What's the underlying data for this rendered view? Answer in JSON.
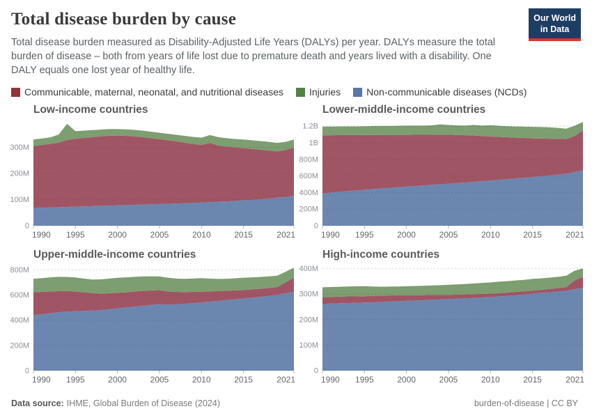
{
  "header": {
    "title": "Total disease burden by cause",
    "subtitle": "Total disease burden measured as Disability-Adjusted Life Years (DALYs) per year. DALYs measure the total burden of disease – both from years of life lost due to premature death and years lived with a disability. One DALY equals one lost year of healthy life.",
    "logo": {
      "line1": "Our World",
      "line2": "in Data",
      "bg": "#1d3d63",
      "accent": "#d8362e"
    }
  },
  "legend": {
    "items": [
      {
        "label": "Communicable, maternal, neonatal, and nutritional diseases",
        "color": "#97323d"
      },
      {
        "label": "Injuries",
        "color": "#538145"
      },
      {
        "label": "Non-communicable diseases (NCDs)",
        "color": "#5776a9"
      }
    ]
  },
  "chart_data": [
    {
      "type": "area",
      "stacked": true,
      "title": "Low-income countries",
      "x": [
        1990,
        1991,
        1992,
        1993,
        1994,
        1995,
        1996,
        1997,
        1998,
        1999,
        2000,
        2001,
        2002,
        2003,
        2004,
        2005,
        2006,
        2007,
        2008,
        2009,
        2010,
        2011,
        2012,
        2013,
        2014,
        2015,
        2016,
        2017,
        2018,
        2019,
        2020,
        2021
      ],
      "xticks": [
        1990,
        1995,
        2000,
        2005,
        2010,
        2015,
        2021
      ],
      "ylim": [
        0,
        400
      ],
      "yticks": [
        {
          "v": 0,
          "label": "0"
        },
        {
          "v": 100,
          "label": "100M"
        },
        {
          "v": 200,
          "label": "200M"
        },
        {
          "v": 300,
          "label": "300M"
        }
      ],
      "series": [
        {
          "name": "Non-communicable diseases (NCDs)",
          "color": "#6b87b0",
          "values": [
            68,
            69,
            70,
            71,
            72,
            73,
            74,
            75,
            76,
            77,
            78,
            79,
            80,
            81,
            82,
            83,
            84,
            85,
            86,
            87,
            89,
            90,
            92,
            93,
            95,
            97,
            99,
            101,
            104,
            107,
            110,
            114
          ]
        },
        {
          "name": "Communicable, maternal, neonatal, and nutritional diseases",
          "color": "#a05564",
          "values": [
            237,
            240,
            243,
            247,
            256,
            260,
            262,
            264,
            266,
            267,
            267,
            265,
            262,
            258,
            253,
            248,
            243,
            238,
            232,
            226,
            220,
            227,
            215,
            210,
            205,
            200,
            195,
            190,
            184,
            177,
            180,
            185
          ]
        },
        {
          "name": "Injuries",
          "color": "#7d9e70",
          "values": [
            25,
            25,
            25,
            31,
            62,
            29,
            28,
            27,
            26,
            26,
            25,
            25,
            25,
            25,
            25,
            25,
            25,
            25,
            26,
            27,
            28,
            30,
            32,
            32,
            32,
            33,
            33,
            33,
            33,
            33,
            31,
            31
          ]
        }
      ]
    },
    {
      "type": "area",
      "stacked": true,
      "title": "Lower-middle-income countries",
      "x": [
        1990,
        1991,
        1992,
        1993,
        1994,
        1995,
        1996,
        1997,
        1998,
        1999,
        2000,
        2001,
        2002,
        2003,
        2004,
        2005,
        2006,
        2007,
        2008,
        2009,
        2010,
        2011,
        2012,
        2013,
        2014,
        2015,
        2016,
        2017,
        2018,
        2019,
        2020,
        2021
      ],
      "xticks": [
        1990,
        1995,
        2000,
        2005,
        2010,
        2015,
        2021
      ],
      "ylim": [
        0,
        1260
      ],
      "yticks": [
        {
          "v": 0,
          "label": "0"
        },
        {
          "v": 200,
          "label": "200M"
        },
        {
          "v": 400,
          "label": "400M"
        },
        {
          "v": 600,
          "label": "600M"
        },
        {
          "v": 800,
          "label": "800M"
        },
        {
          "v": 1000,
          "label": "1B"
        },
        {
          "v": 1200,
          "label": "1.2B"
        }
      ],
      "series": [
        {
          "name": "Non-communicable diseases (NCDs)",
          "color": "#6b87b0",
          "values": [
            390,
            399,
            408,
            417,
            425,
            433,
            441,
            449,
            457,
            464,
            471,
            478,
            485,
            492,
            499,
            506,
            513,
            521,
            529,
            537,
            545,
            553,
            561,
            570,
            578,
            587,
            596,
            605,
            615,
            625,
            645,
            668
          ]
        },
        {
          "name": "Communicable, maternal, neonatal, and nutritional diseases",
          "color": "#a05564",
          "values": [
            700,
            692,
            684,
            676,
            668,
            660,
            653,
            645,
            638,
            631,
            624,
            618,
            611,
            605,
            598,
            591,
            581,
            570,
            559,
            545,
            530,
            518,
            506,
            492,
            480,
            466,
            455,
            444,
            432,
            420,
            435,
            482
          ]
        },
        {
          "name": "Injuries",
          "color": "#7d9e70",
          "values": [
            105,
            105,
            105,
            105,
            105,
            106,
            108,
            109,
            109,
            110,
            111,
            111,
            112,
            113,
            125,
            118,
            116,
            117,
            127,
            126,
            137,
            134,
            133,
            135,
            137,
            139,
            139,
            137,
            133,
            125,
            125,
            102
          ]
        }
      ]
    },
    {
      "type": "area",
      "stacked": true,
      "title": "Upper-middle-income countries",
      "x": [
        1990,
        1991,
        1992,
        1993,
        1994,
        1995,
        1996,
        1997,
        1998,
        1999,
        2000,
        2001,
        2002,
        2003,
        2004,
        2005,
        2006,
        2007,
        2008,
        2009,
        2010,
        2011,
        2012,
        2013,
        2014,
        2015,
        2016,
        2017,
        2018,
        2019,
        2020,
        2021
      ],
      "xticks": [
        1990,
        1995,
        2000,
        2005,
        2010,
        2015,
        2021
      ],
      "ylim": [
        0,
        830
      ],
      "yticks": [
        {
          "v": 0,
          "label": "0"
        },
        {
          "v": 200,
          "label": "200M"
        },
        {
          "v": 400,
          "label": "400M"
        },
        {
          "v": 600,
          "label": "600M"
        },
        {
          "v": 800,
          "label": "800M"
        }
      ],
      "series": [
        {
          "name": "Non-communicable diseases (NCDs)",
          "color": "#6b87b0",
          "values": [
            440,
            448,
            456,
            463,
            469,
            472,
            474,
            477,
            481,
            487,
            494,
            501,
            508,
            515,
            522,
            528,
            524,
            527,
            531,
            536,
            542,
            548,
            554,
            560,
            566,
            572,
            579,
            586,
            594,
            602,
            614,
            625
          ]
        },
        {
          "name": "Communicable, maternal, neonatal, and nutritional diseases",
          "color": "#a05564",
          "values": [
            182,
            177,
            172,
            168,
            163,
            156,
            148,
            139,
            131,
            127,
            124,
            121,
            120,
            118,
            115,
            111,
            105,
            98,
            93,
            89,
            85,
            81,
            77,
            74,
            71,
            68,
            66,
            64,
            62,
            61,
            86,
            113
          ]
        },
        {
          "name": "Injuries",
          "color": "#7d9e70",
          "values": [
            108,
            110,
            113,
            114,
            112,
            112,
            109,
            107,
            113,
            117,
            119,
            119,
            117,
            115,
            112,
            109,
            109,
            106,
            105,
            107,
            108,
            102,
            97,
            96,
            96,
            98,
            96,
            94,
            92,
            91,
            85,
            80
          ]
        }
      ]
    },
    {
      "type": "area",
      "stacked": true,
      "title": "High-income countries",
      "x": [
        1990,
        1991,
        1992,
        1993,
        1994,
        1995,
        1996,
        1997,
        1998,
        1999,
        2000,
        2001,
        2002,
        2003,
        2004,
        2005,
        2006,
        2007,
        2008,
        2009,
        2010,
        2011,
        2012,
        2013,
        2014,
        2015,
        2016,
        2017,
        2018,
        2019,
        2020,
        2021
      ],
      "xticks": [
        1990,
        1995,
        2000,
        2005,
        2010,
        2015,
        2021
      ],
      "ylim": [
        0,
        410
      ],
      "yticks": [
        {
          "v": 0,
          "label": "0"
        },
        {
          "v": 100,
          "label": "100M"
        },
        {
          "v": 200,
          "label": "200M"
        },
        {
          "v": 300,
          "label": "300M"
        },
        {
          "v": 400,
          "label": "400M"
        }
      ],
      "series": [
        {
          "name": "Non-communicable diseases (NCDs)",
          "color": "#6b87b0",
          "values": [
            262,
            263,
            264,
            265,
            266,
            267,
            268,
            269,
            271,
            272,
            274,
            275,
            276,
            278,
            279,
            281,
            282,
            284,
            285,
            287,
            288,
            291,
            293,
            296,
            299,
            302,
            305,
            307,
            310,
            313,
            319,
            325
          ]
        },
        {
          "name": "Communicable, maternal, neonatal, and nutritional diseases",
          "color": "#a05564",
          "values": [
            26,
            26,
            26,
            26,
            25,
            25,
            25,
            25,
            24,
            24,
            22,
            21,
            20,
            19,
            18,
            16,
            16,
            15,
            15,
            14,
            14,
            13,
            13,
            13,
            12,
            12,
            12,
            13,
            14,
            14,
            35,
            43
          ]
        },
        {
          "name": "Injuries",
          "color": "#7d9e70",
          "values": [
            39,
            39,
            39,
            39,
            40,
            39,
            37,
            35,
            35,
            34,
            35,
            36,
            37,
            37,
            38,
            40,
            40,
            41,
            42,
            43,
            44,
            45,
            45,
            45,
            45,
            46,
            45,
            45,
            44,
            45,
            38,
            33
          ]
        }
      ]
    }
  ],
  "footer": {
    "source_label": "Data source:",
    "source_value": "IHME, Global Burden of Disease (2024)",
    "right": "burden-of-disease | CC BY"
  }
}
